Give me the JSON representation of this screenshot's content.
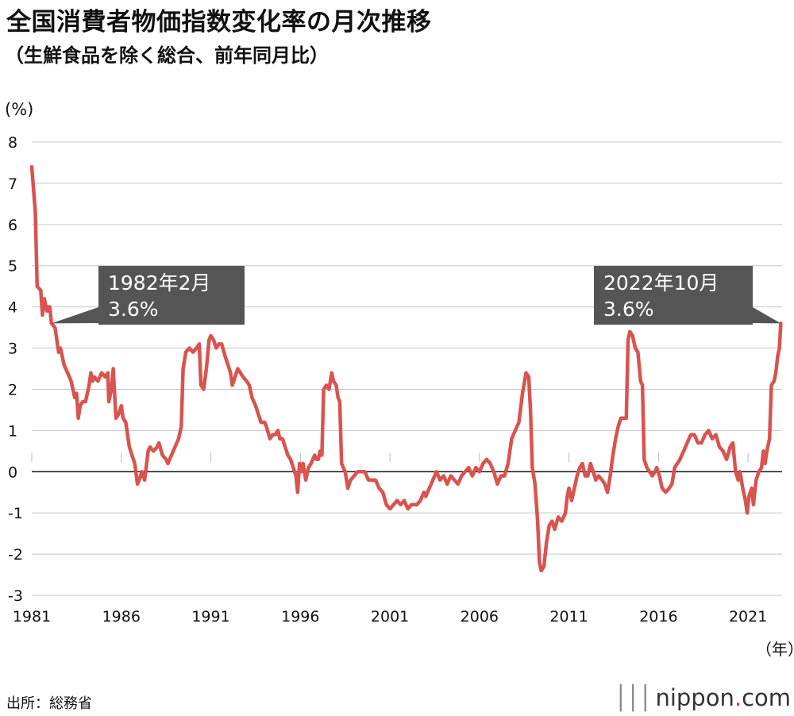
{
  "title": "全国消費者物価指数変化率の月次推移",
  "subtitle": "（生鮮食品を除く総合、前年同月比）",
  "y_unit": "(%)",
  "x_unit": "（年）",
  "source": "出所：総務省",
  "logo": {
    "text": "nippon",
    "dot": ".",
    "tld": "com",
    "marks": "│││"
  },
  "colors": {
    "line": "#d9534f",
    "grid": "#c8c8c8",
    "annotation_box": "#555555"
  },
  "chart_data": {
    "type": "line",
    "title": "全国消費者物価指数変化率の月次推移",
    "subtitle": "（生鮮食品を除く総合、前年同月比）",
    "xlabel": "（年）",
    "ylabel": "(%)",
    "ylim": [
      -3,
      8
    ],
    "xlim": [
      1981.0,
      2022.9
    ],
    "y_ticks": [
      "8",
      "7",
      "6",
      "5",
      "4",
      "3",
      "2",
      "1",
      "0",
      "-1",
      "-2",
      "-3"
    ],
    "x_ticks": [
      "1981",
      "1986",
      "1991",
      "1996",
      "2001",
      "2006",
      "2011",
      "2016",
      "2021"
    ],
    "grid": true,
    "series": [
      {
        "points": [
          [
            1981.0,
            7.4
          ],
          [
            1981.2,
            6.3
          ],
          [
            1981.3,
            4.5
          ],
          [
            1981.5,
            4.4
          ],
          [
            1981.6,
            3.8
          ],
          [
            1981.7,
            4.2
          ],
          [
            1981.85,
            3.9
          ],
          [
            1981.9,
            4.0
          ],
          [
            1982.0,
            4.0
          ],
          [
            1982.1,
            3.6
          ],
          [
            1982.3,
            3.5
          ],
          [
            1982.5,
            2.9
          ],
          [
            1982.6,
            3.0
          ],
          [
            1982.8,
            2.6
          ],
          [
            1983.0,
            2.4
          ],
          [
            1983.2,
            2.2
          ],
          [
            1983.4,
            1.8
          ],
          [
            1983.5,
            1.9
          ],
          [
            1983.6,
            1.3
          ],
          [
            1983.7,
            1.6
          ],
          [
            1983.85,
            1.7
          ],
          [
            1984.0,
            1.7
          ],
          [
            1984.2,
            2.1
          ],
          [
            1984.3,
            2.4
          ],
          [
            1984.4,
            2.2
          ],
          [
            1984.5,
            2.3
          ],
          [
            1984.7,
            2.2
          ],
          [
            1984.9,
            2.4
          ],
          [
            1985.1,
            2.3
          ],
          [
            1985.25,
            2.4
          ],
          [
            1985.3,
            1.7
          ],
          [
            1985.45,
            2.0
          ],
          [
            1985.55,
            2.5
          ],
          [
            1985.7,
            1.3
          ],
          [
            1985.85,
            1.4
          ],
          [
            1986.0,
            1.6
          ],
          [
            1986.1,
            1.3
          ],
          [
            1986.25,
            1.2
          ],
          [
            1986.45,
            0.6
          ],
          [
            1986.6,
            0.4
          ],
          [
            1986.75,
            0.2
          ],
          [
            1986.9,
            -0.3
          ],
          [
            1987.0,
            -0.2
          ],
          [
            1987.15,
            0.0
          ],
          [
            1987.3,
            -0.2
          ],
          [
            1987.5,
            0.5
          ],
          [
            1987.6,
            0.6
          ],
          [
            1987.8,
            0.5
          ],
          [
            1988.0,
            0.6
          ],
          [
            1988.1,
            0.7
          ],
          [
            1988.3,
            0.4
          ],
          [
            1988.5,
            0.3
          ],
          [
            1988.6,
            0.2
          ],
          [
            1988.8,
            0.4
          ],
          [
            1989.0,
            0.6
          ],
          [
            1989.2,
            0.8
          ],
          [
            1989.35,
            1.1
          ],
          [
            1989.45,
            2.5
          ],
          [
            1989.6,
            2.9
          ],
          [
            1989.8,
            3.0
          ],
          [
            1990.0,
            2.9
          ],
          [
            1990.2,
            3.0
          ],
          [
            1990.35,
            3.1
          ],
          [
            1990.45,
            2.1
          ],
          [
            1990.6,
            2.0
          ],
          [
            1990.75,
            2.5
          ],
          [
            1990.9,
            3.2
          ],
          [
            1991.0,
            3.3
          ],
          [
            1991.15,
            3.2
          ],
          [
            1991.3,
            3.0
          ],
          [
            1991.45,
            3.1
          ],
          [
            1991.6,
            3.1
          ],
          [
            1991.8,
            2.8
          ],
          [
            1991.95,
            2.6
          ],
          [
            1992.1,
            2.4
          ],
          [
            1992.2,
            2.1
          ],
          [
            1992.35,
            2.3
          ],
          [
            1992.5,
            2.5
          ],
          [
            1992.65,
            2.4
          ],
          [
            1992.8,
            2.3
          ],
          [
            1993.0,
            2.2
          ],
          [
            1993.15,
            2.1
          ],
          [
            1993.3,
            1.8
          ],
          [
            1993.5,
            1.6
          ],
          [
            1993.65,
            1.4
          ],
          [
            1993.8,
            1.2
          ],
          [
            1994.0,
            1.2
          ],
          [
            1994.1,
            1.1
          ],
          [
            1994.3,
            0.8
          ],
          [
            1994.45,
            0.9
          ],
          [
            1994.6,
            0.9
          ],
          [
            1994.75,
            1.0
          ],
          [
            1994.85,
            0.8
          ],
          [
            1995.0,
            0.8
          ],
          [
            1995.15,
            0.6
          ],
          [
            1995.3,
            0.4
          ],
          [
            1995.45,
            0.3
          ],
          [
            1995.6,
            0.1
          ],
          [
            1995.75,
            -0.1
          ],
          [
            1995.85,
            -0.5
          ],
          [
            1995.95,
            0.2
          ],
          [
            1996.05,
            0.0
          ],
          [
            1996.15,
            0.2
          ],
          [
            1996.3,
            -0.2
          ],
          [
            1996.45,
            0.1
          ],
          [
            1996.6,
            0.2
          ],
          [
            1996.8,
            0.4
          ],
          [
            1996.9,
            0.3
          ],
          [
            1997.0,
            0.3
          ],
          [
            1997.1,
            0.5
          ],
          [
            1997.2,
            0.4
          ],
          [
            1997.3,
            2.0
          ],
          [
            1997.45,
            2.1
          ],
          [
            1997.6,
            2.0
          ],
          [
            1997.75,
            2.4
          ],
          [
            1997.85,
            2.2
          ],
          [
            1998.0,
            2.1
          ],
          [
            1998.1,
            1.8
          ],
          [
            1998.2,
            1.7
          ],
          [
            1998.3,
            0.2
          ],
          [
            1998.5,
            0.0
          ],
          [
            1998.65,
            -0.4
          ],
          [
            1998.8,
            -0.2
          ],
          [
            1999.0,
            -0.1
          ],
          [
            1999.2,
            0.0
          ],
          [
            1999.4,
            0.0
          ],
          [
            1999.6,
            0.0
          ],
          [
            1999.8,
            -0.2
          ],
          [
            2000.0,
            -0.2
          ],
          [
            2000.2,
            -0.2
          ],
          [
            2000.4,
            -0.4
          ],
          [
            2000.6,
            -0.5
          ],
          [
            2000.8,
            -0.8
          ],
          [
            2001.0,
            -0.9
          ],
          [
            2001.2,
            -0.8
          ],
          [
            2001.4,
            -0.7
          ],
          [
            2001.6,
            -0.8
          ],
          [
            2001.8,
            -0.7
          ],
          [
            2002.0,
            -0.9
          ],
          [
            2002.2,
            -0.8
          ],
          [
            2002.5,
            -0.8
          ],
          [
            2002.7,
            -0.7
          ],
          [
            2002.9,
            -0.5
          ],
          [
            2003.0,
            -0.6
          ],
          [
            2003.2,
            -0.4
          ],
          [
            2003.4,
            -0.2
          ],
          [
            2003.6,
            0.0
          ],
          [
            2003.8,
            -0.2
          ],
          [
            2004.0,
            -0.1
          ],
          [
            2004.2,
            -0.3
          ],
          [
            2004.4,
            -0.1
          ],
          [
            2004.6,
            -0.2
          ],
          [
            2004.8,
            -0.3
          ],
          [
            2005.0,
            -0.1
          ],
          [
            2005.2,
            0.0
          ],
          [
            2005.4,
            0.1
          ],
          [
            2005.6,
            -0.1
          ],
          [
            2005.8,
            0.1
          ],
          [
            2006.0,
            0.0
          ],
          [
            2006.2,
            0.2
          ],
          [
            2006.4,
            0.3
          ],
          [
            2006.6,
            0.2
          ],
          [
            2006.8,
            0.0
          ],
          [
            2007.0,
            -0.3
          ],
          [
            2007.2,
            -0.1
          ],
          [
            2007.4,
            -0.1
          ],
          [
            2007.6,
            0.2
          ],
          [
            2007.8,
            0.8
          ],
          [
            2008.0,
            1.0
          ],
          [
            2008.2,
            1.2
          ],
          [
            2008.4,
            1.9
          ],
          [
            2008.6,
            2.4
          ],
          [
            2008.75,
            2.3
          ],
          [
            2008.85,
            1.5
          ],
          [
            2008.95,
            0.1
          ],
          [
            2009.1,
            -0.3
          ],
          [
            2009.25,
            -1.2
          ],
          [
            2009.35,
            -2.2
          ],
          [
            2009.45,
            -2.4
          ],
          [
            2009.6,
            -2.3
          ],
          [
            2009.75,
            -1.7
          ],
          [
            2009.9,
            -1.3
          ],
          [
            2010.05,
            -1.2
          ],
          [
            2010.2,
            -1.4
          ],
          [
            2010.4,
            -1.1
          ],
          [
            2010.6,
            -1.2
          ],
          [
            2010.8,
            -1.0
          ],
          [
            2010.9,
            -0.6
          ],
          [
            2011.0,
            -0.4
          ],
          [
            2011.15,
            -0.7
          ],
          [
            2011.3,
            -0.4
          ],
          [
            2011.45,
            -0.1
          ],
          [
            2011.6,
            0.1
          ],
          [
            2011.75,
            0.2
          ],
          [
            2011.9,
            -0.1
          ],
          [
            2012.05,
            -0.1
          ],
          [
            2012.2,
            0.2
          ],
          [
            2012.35,
            0.0
          ],
          [
            2012.5,
            -0.2
          ],
          [
            2012.65,
            -0.1
          ],
          [
            2012.85,
            -0.2
          ],
          [
            2013.0,
            -0.3
          ],
          [
            2013.15,
            -0.5
          ],
          [
            2013.3,
            -0.1
          ],
          [
            2013.45,
            0.4
          ],
          [
            2013.6,
            0.8
          ],
          [
            2013.75,
            1.1
          ],
          [
            2013.9,
            1.3
          ],
          [
            2014.05,
            1.3
          ],
          [
            2014.2,
            1.3
          ],
          [
            2014.3,
            3.2
          ],
          [
            2014.4,
            3.4
          ],
          [
            2014.55,
            3.3
          ],
          [
            2014.7,
            3.0
          ],
          [
            2014.85,
            2.9
          ],
          [
            2015.0,
            2.2
          ],
          [
            2015.1,
            2.1
          ],
          [
            2015.2,
            0.3
          ],
          [
            2015.35,
            0.1
          ],
          [
            2015.5,
            0.0
          ],
          [
            2015.65,
            -0.1
          ],
          [
            2015.8,
            0.0
          ],
          [
            2015.9,
            0.1
          ],
          [
            2016.05,
            -0.1
          ],
          [
            2016.2,
            -0.4
          ],
          [
            2016.4,
            -0.5
          ],
          [
            2016.6,
            -0.4
          ],
          [
            2016.75,
            -0.3
          ],
          [
            2016.9,
            0.1
          ],
          [
            2017.05,
            0.2
          ],
          [
            2017.2,
            0.3
          ],
          [
            2017.4,
            0.5
          ],
          [
            2017.6,
            0.7
          ],
          [
            2017.8,
            0.9
          ],
          [
            2018.0,
            0.9
          ],
          [
            2018.2,
            0.7
          ],
          [
            2018.4,
            0.7
          ],
          [
            2018.6,
            0.9
          ],
          [
            2018.8,
            1.0
          ],
          [
            2019.0,
            0.8
          ],
          [
            2019.2,
            0.9
          ],
          [
            2019.4,
            0.6
          ],
          [
            2019.6,
            0.5
          ],
          [
            2019.8,
            0.3
          ],
          [
            2020.0,
            0.6
          ],
          [
            2020.15,
            0.7
          ],
          [
            2020.3,
            0.0
          ],
          [
            2020.45,
            -0.2
          ],
          [
            2020.55,
            0.0
          ],
          [
            2020.7,
            -0.4
          ],
          [
            2020.85,
            -0.7
          ],
          [
            2020.95,
            -1.0
          ],
          [
            2021.05,
            -0.6
          ],
          [
            2021.2,
            -0.4
          ],
          [
            2021.3,
            -0.8
          ],
          [
            2021.45,
            -0.2
          ],
          [
            2021.6,
            0.0
          ],
          [
            2021.75,
            0.1
          ],
          [
            2021.85,
            0.5
          ],
          [
            2021.95,
            0.2
          ],
          [
            2022.05,
            0.5
          ],
          [
            2022.2,
            0.8
          ],
          [
            2022.3,
            2.1
          ],
          [
            2022.45,
            2.2
          ],
          [
            2022.55,
            2.4
          ],
          [
            2022.65,
            2.8
          ],
          [
            2022.75,
            3.0
          ],
          [
            2022.83,
            3.6
          ]
        ]
      }
    ],
    "annotations": [
      {
        "label_line1": "1982年2月",
        "label_line2": "3.6%",
        "x": 1982.1,
        "y": 3.6
      },
      {
        "label_line1": "2022年10月",
        "label_line2": "3.6%",
        "x": 2022.83,
        "y": 3.6
      }
    ]
  }
}
